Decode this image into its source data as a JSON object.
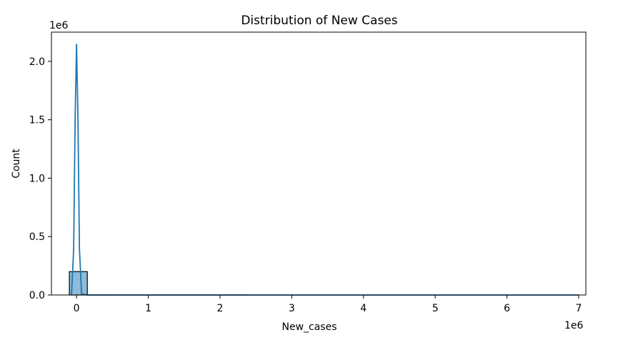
{
  "chart_data": {
    "type": "bar",
    "title": "Distribution of New Cases",
    "xlabel": "New_cases",
    "ylabel": "Count",
    "x_offset_label": "1e6",
    "y_offset_label": "1e6",
    "x_scale_factor": 1000000,
    "y_scale_factor": 1000000,
    "xlim": [
      -0.35,
      7.1
    ],
    "ylim": [
      0,
      2.25
    ],
    "xticks": [
      0,
      1,
      2,
      3,
      4,
      5,
      6,
      7
    ],
    "yticks": [
      0.0,
      0.5,
      1.0,
      1.5,
      2.0
    ],
    "xtick_labels": [
      "0",
      "1",
      "2",
      "3",
      "4",
      "5",
      "6",
      "7"
    ],
    "ytick_labels": [
      "0.0",
      "0.5",
      "1.0",
      "1.5",
      "2.0"
    ],
    "bins": {
      "edges": [
        -0.1,
        0.15,
        0.4,
        0.65,
        0.9,
        1.15,
        1.4,
        1.65,
        1.9,
        2.15,
        2.4,
        2.65,
        2.9,
        3.15,
        3.4,
        3.65,
        3.9,
        4.15,
        4.4,
        4.65,
        4.9,
        5.15,
        5.4,
        5.65,
        5.9,
        6.15,
        6.4,
        6.65,
        6.9,
        7.0
      ],
      "counts": [
        0.2,
        0.001,
        0.0005,
        0.0003,
        0.0002,
        0.0001,
        0.0001,
        0.0001,
        0.0001,
        0.0001,
        0.0,
        0.0,
        0.0,
        0.0,
        0.0,
        0.0,
        0.0,
        0.0,
        0.0,
        0.0,
        0.0,
        0.0,
        0.0,
        0.0,
        0.0,
        0.0,
        0.0,
        0.0,
        0.0
      ]
    },
    "kde": {
      "x": [
        -0.07,
        -0.04,
        -0.02,
        0.0,
        0.02,
        0.04,
        0.07,
        0.15,
        0.5,
        1.0,
        2.0,
        3.0,
        4.0,
        5.0,
        6.0,
        7.0
      ],
      "y": [
        0.0,
        0.4,
        1.5,
        2.15,
        1.5,
        0.4,
        0.01,
        0.0,
        0.0,
        0.0,
        0.0,
        0.0,
        0.0,
        0.0,
        0.0,
        0.0
      ]
    },
    "bar_color": "#1f77b4",
    "bar_fill_opacity": 0.5,
    "edge_color": "#000000",
    "line_color": "#1f77b4",
    "grid": false,
    "legend": "none"
  }
}
